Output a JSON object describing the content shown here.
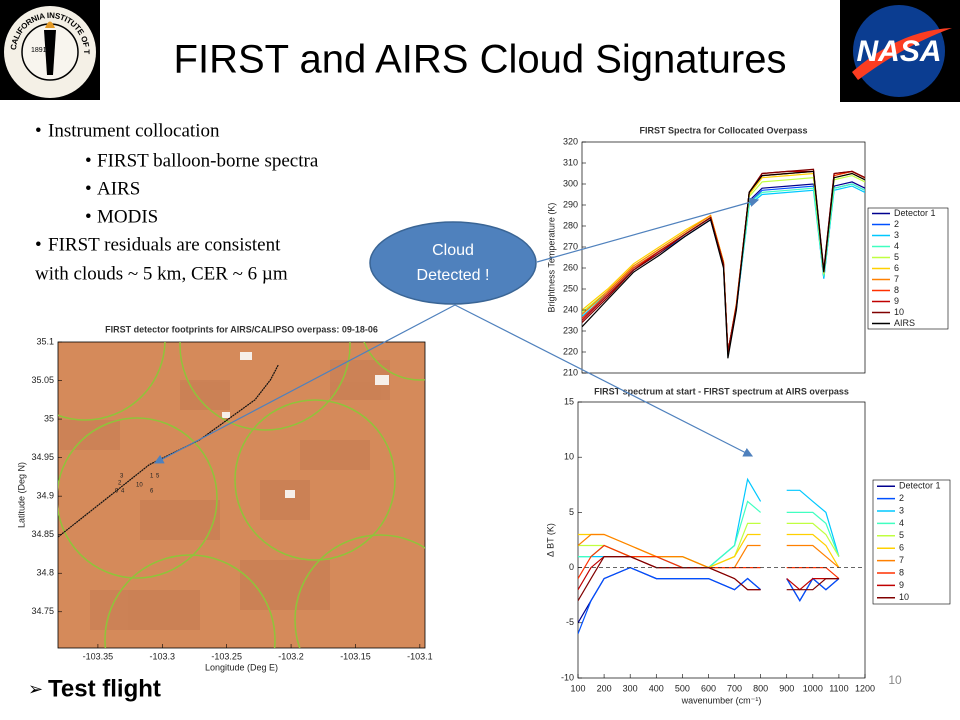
{
  "slide": {
    "title": "FIRST and AIRS Cloud Signatures",
    "bullets": [
      "Instrument collocation",
      "FIRST balloon-borne spectra",
      "AIRS",
      "MODIS",
      "FIRST residuals are consistent",
      "with clouds ~ 5 km, CER ~ 6 µm"
    ],
    "callout": [
      "Cloud",
      "Detected !"
    ],
    "footer": "Test flight",
    "page_number": "10",
    "caltech_logo": {
      "text": "CALIFORNIA INSTITUTE OF TECHNOLOGY",
      "year": "1891"
    },
    "nasa_logo": "NASA"
  },
  "chart_data": [
    {
      "type": "line",
      "title": "FIRST Spectra for Collocated Overpass",
      "ylabel": "Brightness Temperature (K)",
      "x": [
        100,
        200,
        300,
        400,
        500,
        600,
        650,
        667,
        700,
        750,
        800,
        900,
        1000,
        1040,
        1080,
        1150,
        1200
      ],
      "xlim": [
        100,
        1200
      ],
      "ylim": [
        210,
        320
      ],
      "yticks": [
        210,
        220,
        230,
        240,
        250,
        260,
        270,
        280,
        290,
        300,
        310,
        320
      ],
      "series": [
        {
          "name": "Detector 1",
          "color": "#00008f",
          "values": [
            238,
            248,
            260,
            268,
            276,
            284,
            262,
            220,
            242,
            292,
            298,
            299,
            300,
            256,
            299,
            301,
            298
          ]
        },
        {
          "name": "2",
          "color": "#0050ff",
          "values": [
            236,
            247,
            259,
            267,
            275,
            283,
            261,
            219,
            241,
            291,
            297,
            298,
            299,
            255,
            298,
            300,
            297
          ]
        },
        {
          "name": "3",
          "color": "#00c8ff",
          "values": [
            237,
            247,
            260,
            268,
            276,
            284,
            262,
            219,
            241,
            290,
            295,
            296,
            297,
            255,
            297,
            299,
            296
          ]
        },
        {
          "name": "4",
          "color": "#40ffc0",
          "values": [
            238,
            248,
            260,
            268,
            276,
            284,
            262,
            219,
            242,
            291,
            296,
            297,
            298,
            256,
            298,
            300,
            297
          ]
        },
        {
          "name": "5",
          "color": "#c0ff40",
          "values": [
            239,
            249,
            261,
            269,
            277,
            285,
            263,
            219,
            242,
            294,
            301,
            302,
            303,
            257,
            302,
            304,
            301
          ]
        },
        {
          "name": "6",
          "color": "#ffd000",
          "values": [
            240,
            250,
            262,
            270,
            278,
            285,
            263,
            219,
            243,
            295,
            303,
            304,
            305,
            258,
            303,
            305,
            302
          ]
        },
        {
          "name": "7",
          "color": "#ff8000",
          "values": [
            238,
            249,
            261,
            269,
            277,
            285,
            263,
            220,
            243,
            296,
            304,
            305,
            306,
            258,
            304,
            306,
            303
          ]
        },
        {
          "name": "8",
          "color": "#ff3000",
          "values": [
            236,
            248,
            260,
            268,
            276,
            284,
            262,
            220,
            242,
            296,
            304,
            305,
            306,
            258,
            304,
            306,
            303
          ]
        },
        {
          "name": "9",
          "color": "#c00000",
          "values": [
            235,
            247,
            259,
            268,
            276,
            284,
            262,
            220,
            242,
            296,
            305,
            306,
            306,
            259,
            305,
            306,
            303
          ]
        },
        {
          "name": "10",
          "color": "#800000",
          "values": [
            234,
            246,
            259,
            267,
            276,
            284,
            262,
            220,
            242,
            296,
            305,
            306,
            307,
            259,
            305,
            306,
            303
          ]
        },
        {
          "name": "AIRS",
          "color": "#000000",
          "values": [
            232,
            245,
            258,
            266,
            275,
            283,
            260,
            217,
            240,
            296,
            304,
            305,
            306,
            258,
            303,
            305,
            302
          ]
        }
      ]
    },
    {
      "type": "line",
      "title": "FIRST spectrum at start - FIRST spectrum at AIRS overpass",
      "xlabel": "wavenumber (cm⁻¹)",
      "ylabel": "Δ BT (K)",
      "x": [
        100,
        150,
        200,
        300,
        400,
        500,
        600,
        700,
        750,
        800,
        850,
        900,
        950,
        1000,
        1050,
        1100,
        1200
      ],
      "xlim": [
        100,
        1200
      ],
      "xticks": [
        100,
        200,
        300,
        400,
        500,
        600,
        700,
        800,
        900,
        1000,
        1100,
        1200
      ],
      "ylim": [
        -10,
        15
      ],
      "yticks": [
        -10,
        -5,
        0,
        5,
        10,
        15
      ],
      "reference_line": 0,
      "series": [
        {
          "name": "Detector 1",
          "color": "#00008f",
          "values": [
            -5,
            -3,
            -1,
            0,
            -1,
            -1,
            -1,
            -2,
            -1,
            -2,
            null,
            -1,
            -3,
            -1,
            -2,
            -1,
            null
          ]
        },
        {
          "name": "2",
          "color": "#0050ff",
          "values": [
            -6,
            -3,
            -1,
            0,
            -1,
            -1,
            -1,
            -2,
            -1,
            -2,
            null,
            -1,
            -3,
            -1,
            -2,
            -1,
            null
          ]
        },
        {
          "name": "3",
          "color": "#00c8ff",
          "values": [
            1,
            1,
            1,
            1,
            1,
            0,
            0,
            2,
            8,
            6,
            null,
            7,
            7,
            6,
            5,
            1,
            null
          ]
        },
        {
          "name": "4",
          "color": "#40ffc0",
          "values": [
            1,
            1,
            2,
            1,
            1,
            1,
            0,
            2,
            6,
            5,
            null,
            5,
            5,
            5,
            4,
            1,
            null
          ]
        },
        {
          "name": "5",
          "color": "#c0ff40",
          "values": [
            2,
            2,
            2,
            1,
            1,
            1,
            0,
            1,
            4,
            4,
            null,
            4,
            4,
            4,
            3,
            1,
            null
          ]
        },
        {
          "name": "6",
          "color": "#ffd000",
          "values": [
            3,
            3,
            3,
            2,
            1,
            1,
            0,
            1,
            3,
            3,
            null,
            3,
            3,
            3,
            2,
            0,
            null
          ]
        },
        {
          "name": "7",
          "color": "#ff8000",
          "values": [
            2,
            3,
            3,
            2,
            1,
            1,
            0,
            0,
            2,
            2,
            null,
            2,
            2,
            2,
            1,
            0,
            null
          ]
        },
        {
          "name": "8",
          "color": "#ff3000",
          "values": [
            -1,
            1,
            2,
            1,
            1,
            0,
            0,
            0,
            0,
            0,
            null,
            0,
            0,
            0,
            0,
            -1,
            null
          ]
        },
        {
          "name": "9",
          "color": "#c00000",
          "values": [
            -2,
            0,
            1,
            1,
            0,
            0,
            0,
            -1,
            -2,
            -2,
            null,
            -1,
            -2,
            -1,
            -1,
            -1,
            null
          ]
        },
        {
          "name": "10",
          "color": "#800000",
          "values": [
            -3,
            -1,
            1,
            1,
            0,
            0,
            0,
            -1,
            -2,
            -2,
            null,
            -2,
            -2,
            -2,
            -1,
            -1,
            null
          ]
        }
      ]
    },
    {
      "type": "map",
      "title": "FIRST detector footprints for AIRS/CALIPSO overpass: 09-18-06",
      "xlabel": "Longitude (Deg E)",
      "ylabel": "Latitude (Deg N)",
      "xlim": [
        -103.381,
        -103.096
      ],
      "xticks": [
        -103.35,
        -103.3,
        -103.25,
        -103.2,
        -103.15,
        -103.1
      ],
      "ylim": [
        34.703,
        35.1
      ],
      "yticks": [
        34.75,
        34.8,
        34.85,
        34.9,
        34.95,
        35,
        35.05,
        35.1
      ],
      "track": {
        "lon": [
          -103.381,
          -103.31,
          -103.271,
          -103.228,
          -103.216,
          -103.21
        ],
        "lat": [
          34.847,
          34.941,
          34.973,
          35.025,
          35.051,
          35.07
        ]
      },
      "detector_labels": [
        "3",
        "2",
        "1",
        "5",
        "10",
        "9",
        "4",
        "6"
      ]
    }
  ]
}
